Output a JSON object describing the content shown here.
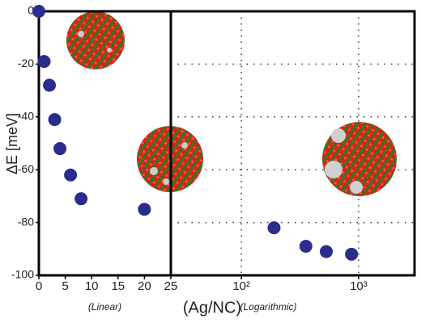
{
  "chart_data": [
    {
      "type": "scatter",
      "x_label": "(Ag/NC)",
      "y_label": "ΔE [meV]",
      "annotation": "(Linear)",
      "x": [
        0,
        1,
        2,
        3,
        4,
        6,
        8,
        20
      ],
      "values": [
        0,
        -19,
        -28,
        -41,
        -52,
        -62,
        -71,
        -75
      ],
      "color": "#2a2c8e",
      "xlim": [
        0,
        25
      ],
      "xticks": [
        0,
        5,
        10,
        15,
        20,
        25
      ],
      "ylim": [
        -100,
        0
      ],
      "yticks": [
        0,
        -20,
        -40,
        -60,
        -80,
        -100
      ],
      "grid": false
    },
    {
      "type": "scatter",
      "annotation": "(Logarithmic)",
      "log_x": true,
      "x": [
        190,
        355,
        530,
        870
      ],
      "values": [
        -82,
        -89,
        -91,
        -92
      ],
      "color": "#2a2c8e",
      "xlim": [
        25,
        3000
      ],
      "xticks": [
        {
          "value": 100,
          "label": "10²"
        },
        {
          "value": 1000,
          "label": "10³"
        }
      ],
      "ylim": [
        -100,
        0
      ],
      "yticks": [
        0,
        -20,
        -40,
        -60,
        -80,
        -100
      ],
      "grid": true
    }
  ]
}
